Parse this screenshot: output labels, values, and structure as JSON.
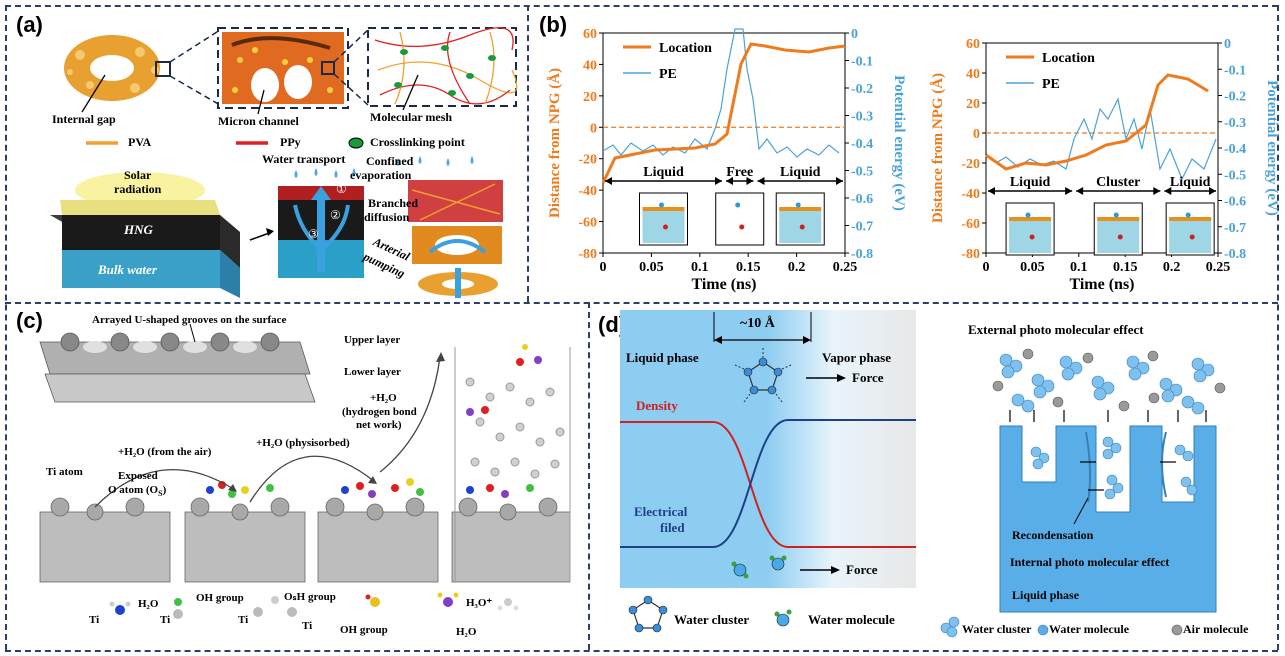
{
  "panels": {
    "a": "(a)",
    "b": "(b)",
    "c": "(c)",
    "d": "(d)"
  },
  "panel_a": {
    "internal_gap": "Internal gap",
    "micron_channel": "Micron channel",
    "molecular_mesh": "Molecular mesh",
    "legend": {
      "pva": "PVA",
      "ppy": "PPy",
      "crosslink": "Crosslinking point"
    },
    "solar": "Solar",
    "radiation": "radiation",
    "hng": "HNG",
    "bulk_water": "Bulk water",
    "water_transport": "Water transport",
    "confined": "Confined",
    "evaporation": "evaporation",
    "branched": "Branched",
    "diffusion": "diffusion",
    "arterial": "Arterial",
    "pumping": "pumping",
    "n1": "①",
    "n2": "②",
    "n3": "③",
    "colors": {
      "pva": "#f0a030",
      "ppy": "#e02020",
      "crosslink": "#1a9a3a"
    }
  },
  "panel_b": {
    "colors": {
      "location": "#f07b1c",
      "pe": "#4aa3d8"
    },
    "left": {
      "ylabel_left": "Distance from NPG (Å)",
      "ylabel_right": "Potential energy (eV)",
      "xlabel": "Time (ns)",
      "legend": [
        "Location",
        "PE"
      ],
      "yticks_left": [
        "60",
        "40",
        "20",
        "0",
        "-20",
        "-40",
        "-60",
        "-80"
      ],
      "yticks_right": [
        "0",
        "-0.1",
        "-0.2",
        "-0.3",
        "-0.4",
        "-0.5",
        "-0.6",
        "-0.7",
        "-0.8"
      ],
      "xticks": [
        "0",
        "0.05",
        "0.1",
        "0.15",
        "0.2",
        "0.25"
      ],
      "phases": [
        "Liquid",
        "Free",
        "Liquid"
      ]
    },
    "right": {
      "ylabel_left": "Distance from NPG (Å)",
      "ylabel_right": "Potential energy (eV)",
      "xlabel": "Time (ns)",
      "legend": [
        "Location",
        "PE"
      ],
      "yticks_left": [
        "60",
        "40",
        "20",
        "0",
        "-20",
        "-40",
        "-60",
        "-80"
      ],
      "yticks_right": [
        "0",
        "-0.1",
        "-0.2",
        "-0.3",
        "-0.4",
        "-0.5",
        "-0.6",
        "-0.7",
        "-0.8"
      ],
      "xticks": [
        "0",
        "0.05",
        "0.1",
        "0.15",
        "0.2",
        "0.25"
      ],
      "phases": [
        "Liquid",
        "Cluster",
        "Liquid"
      ]
    }
  },
  "panel_c": {
    "grooves": "Arrayed U-shaped grooves on the surface",
    "upper": "Upper layer",
    "lower": "Lower layer",
    "h2o_plus": "+H₂O",
    "hbond1": "(hydrogen bond",
    "hbond2": "net work)",
    "from_air": "+H₂O (from the air)",
    "physisorbed": "+H₂O (physisorbed)",
    "ti_atom": "Ti atom",
    "exposed": "Exposed",
    "o_atom": "O atom (O",
    "o_sub": "S",
    "legend": {
      "h2o": "H₂O",
      "ti1": "Ti",
      "oh": "OH group",
      "ti2": "Ti",
      "osh": "OₛH group",
      "ti3": "Ti",
      "ti4": "Ti",
      "oh2": "OH group",
      "h3o": "H₃O⁺",
      "h2o2": "H₂O"
    }
  },
  "panel_d": {
    "width": "~10 Å",
    "liquid_phase": "Liquid phase",
    "vapor_phase": "Vapor phase",
    "force_top": "Force",
    "density": "Density",
    "electrical": "Electrical",
    "filed": "filed",
    "force_bottom": "Force",
    "water_cluster": "Water cluster",
    "water_molecule": "Water molecule",
    "external": "External photo molecular effect",
    "recondensation": "Recondensation",
    "internal": "Internal photo molecular effect",
    "liquid_phase2": "Liquid phase",
    "legend2": {
      "cluster": "Water cluster",
      "molecule": "Water molecule",
      "air": "Air molecule"
    },
    "colors": {
      "density": "#d02020",
      "field": "#1f3f8a",
      "water": "#5aaee8"
    }
  }
}
